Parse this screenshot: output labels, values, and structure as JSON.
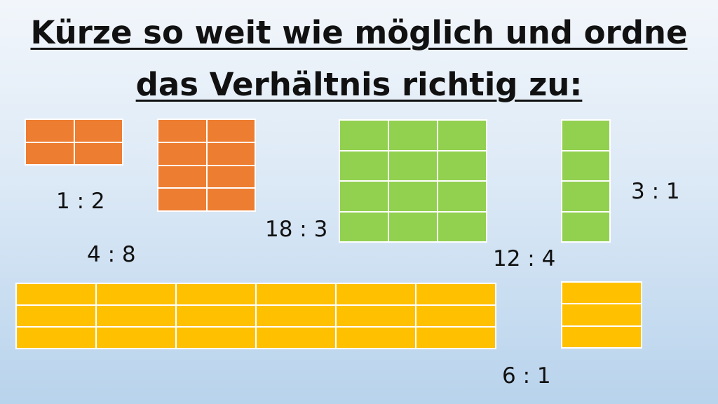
{
  "title": {
    "line1": "Kürze so weit wie möglich und ordne",
    "line2": "das Verhältnis richtig zu:"
  },
  "colors": {
    "orange": "#ED7D31",
    "green": "#92D050",
    "yellow": "#FFC000",
    "divider": "#FFFFFF"
  },
  "ratio_labels": {
    "r_1_2": "1 : 2",
    "r_4_8": "4 : 8",
    "r_18_3": "18 : 3",
    "r_12_4": "12 : 4",
    "r_3_1": "3 : 1",
    "r_6_1": "6 : 1"
  },
  "figures": [
    {
      "name": "orange-grid-small",
      "color": "orange",
      "rows": 2,
      "cols": 2
    },
    {
      "name": "orange-grid-tall",
      "color": "orange",
      "rows": 4,
      "cols": 2
    },
    {
      "name": "green-grid-large",
      "color": "green",
      "rows": 4,
      "cols": 3
    },
    {
      "name": "green-column",
      "color": "green",
      "rows": 4,
      "cols": 1
    },
    {
      "name": "yellow-grid-wide",
      "color": "yellow",
      "rows": 3,
      "cols": 6
    },
    {
      "name": "yellow-grid-small",
      "color": "yellow",
      "rows": 3,
      "cols": 1
    }
  ]
}
